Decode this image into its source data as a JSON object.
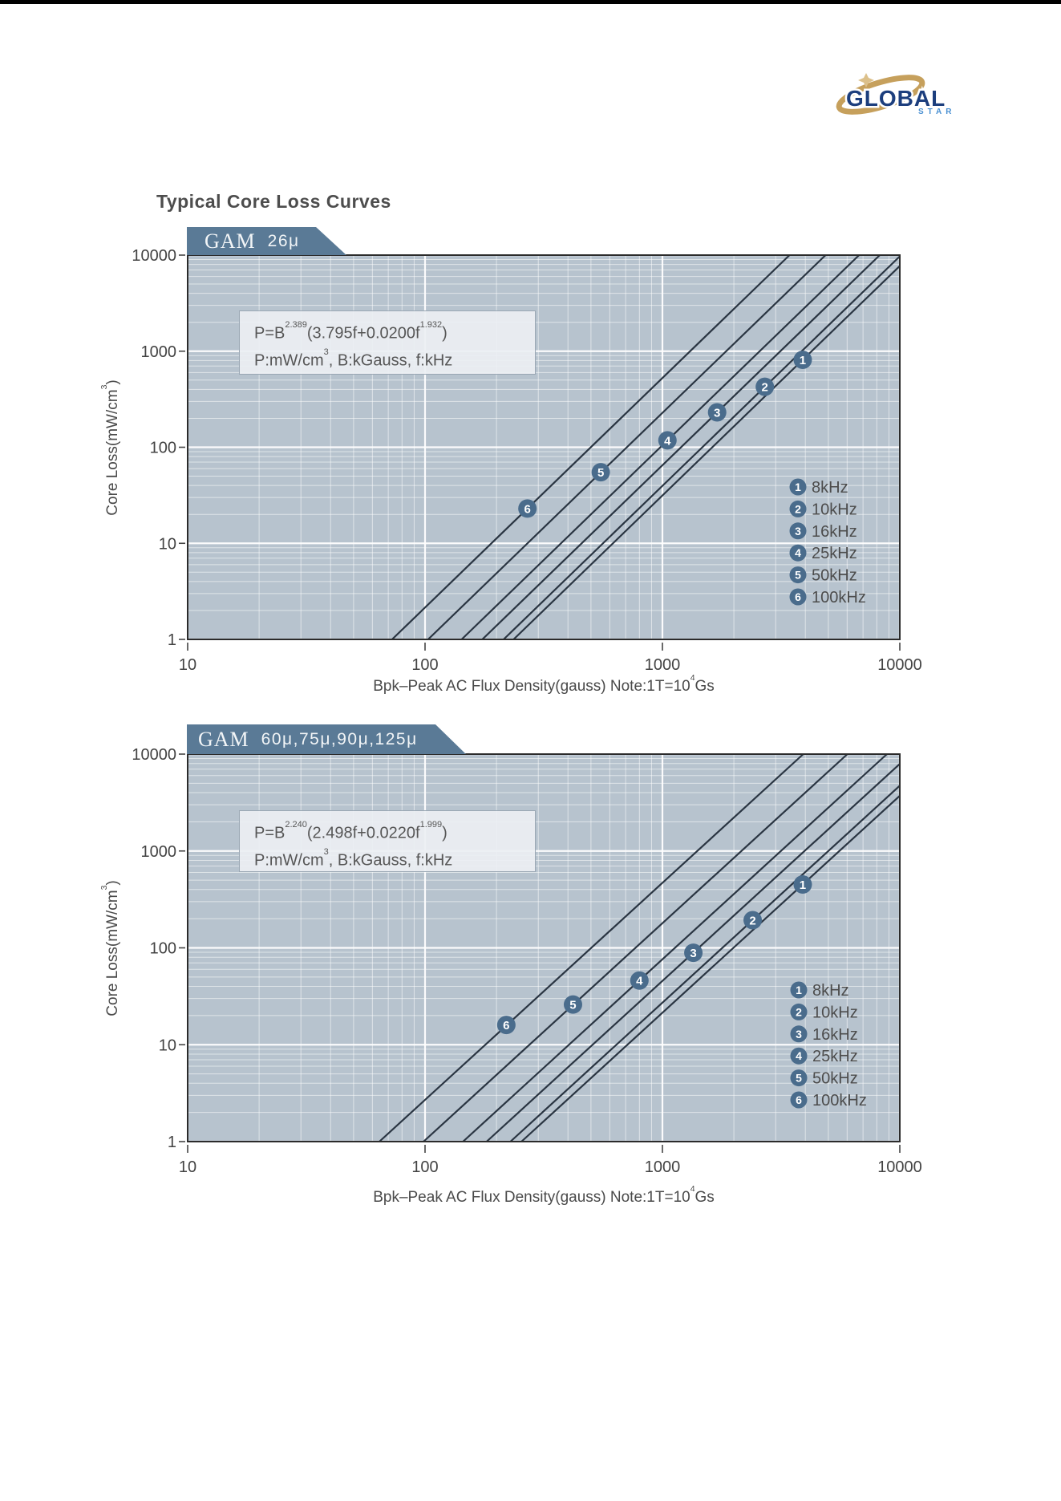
{
  "page_title": "Typical Core Loss Curves",
  "logo": {
    "word": "GLOBAL",
    "sub": "STAR"
  },
  "colors": {
    "plot_background": "#b7c3ce",
    "grid_line": "#ffffff",
    "curve": "#2a3542",
    "marker_fill": "#4a6c8c",
    "marker_number": "#ffffff",
    "banner_background": "#5a7a96",
    "axis_text": "#434343",
    "border": "#2b2b2b",
    "logo_word_color": "#1c3e7d",
    "logo_sub_color": "#4a90d2",
    "logo_swoosh_color": "#c6a05c"
  },
  "axis": {
    "x_title": {
      "p1": "Bpk–Peak AC Flux Density(gauss) Note:1T=10",
      "s1": "4",
      "p2": "Gs"
    },
    "y_title": {
      "p1": "Core Loss(mW/cm",
      "s1": "3",
      "p2": ")"
    },
    "x_ticks": [
      "10",
      "100",
      "1000",
      "10000"
    ],
    "y_ticks": [
      "10000",
      "1000",
      "100",
      "10",
      "1"
    ]
  },
  "charts": [
    {
      "banner": {
        "brand": "GAM",
        "spec": "26μ"
      },
      "formula": {
        "p1": "P=B",
        "s1": "2.389",
        "p2": "(3.795f+0.0200f",
        "s2": "1.932",
        "p3": ")"
      },
      "units": {
        "p1": "P:mW/cm",
        "s1": "3",
        "p2": ",  B:kGauss,  f:kHz"
      }
    },
    {
      "banner": {
        "brand": "GAM",
        "spec": "60μ,75μ,90μ,125μ"
      },
      "formula": {
        "p1": "P=B",
        "s1": "2.240",
        "p2": "(2.498f+0.0220f",
        "s2": "1.999",
        "p3": ")"
      },
      "units": {
        "p1": "P:mW/cm",
        "s1": "3",
        "p2": ",  B:kGauss,  f:kHz"
      }
    }
  ],
  "chart_data": [
    {
      "type": "line",
      "title": "GAM 26μ Typical Core Loss",
      "x_scale": "log",
      "y_scale": "log",
      "xlim": [
        10,
        10000
      ],
      "ylim": [
        1,
        10000
      ],
      "xlabel": "Bpk–Peak AC Flux Density(gauss) Note:1T=10⁴Gs",
      "ylabel": "Core Loss(mW/cm³)",
      "grid": true,
      "legend_position": "lower right",
      "formula": "P=B^2.389(3.795f+0.0200f^1.932)  P:mW/cm³, B:kGauss, f:kHz",
      "coeff": {
        "B_exponent": 2.389,
        "f_linear": 3.795,
        "f_coef": 0.02,
        "f_exponent": 1.932
      },
      "x_sample_gauss": [
        100,
        300,
        1000,
        3000,
        10000
      ],
      "series": [
        {
          "marker": "1",
          "name": "8kHz",
          "f_kHz": 8,
          "P_mW_cm3": [
            0.13,
            1.77,
            31.5,
            434,
            7710
          ],
          "marker_at": {
            "B_gauss": 3900,
            "P": 813
          }
        },
        {
          "marker": "2",
          "name": "10kHz",
          "f_kHz": 10,
          "P_mW_cm3": [
            0.16,
            2.23,
            39.7,
            547,
            9716
          ],
          "marker_at": {
            "B_gauss": 2700,
            "P": 426
          }
        },
        {
          "marker": "3",
          "name": "16kHz",
          "f_kHz": 16,
          "P_mW_cm3": [
            0.27,
            3.66,
            64.9,
            896,
            15908
          ],
          "marker_at": {
            "B_gauss": 1700,
            "P": 231
          }
        },
        {
          "marker": "4",
          "name": "25kHz",
          "f_kHz": 25,
          "P_mW_cm3": [
            0.43,
            5.91,
            105,
            1448,
            25704
          ],
          "marker_at": {
            "B_gauss": 1050,
            "P": 118
          }
        },
        {
          "marker": "5",
          "name": "50kHz",
          "f_kHz": 50,
          "P_mW_cm3": [
            0.93,
            12.9,
            228,
            3148,
            55877
          ],
          "marker_at": {
            "B_gauss": 550,
            "P": 55
          }
        },
        {
          "marker": "6",
          "name": "100kHz",
          "f_kHz": 100,
          "P_mW_cm3": [
            2.14,
            29.5,
            524,
            7237,
            128463
          ],
          "marker_at": {
            "B_gauss": 270,
            "P": 23
          }
        }
      ]
    },
    {
      "type": "line",
      "title": "GAM 60μ,75μ,90μ,125μ Typical Core Loss",
      "x_scale": "log",
      "y_scale": "log",
      "xlim": [
        10,
        10000
      ],
      "ylim": [
        1,
        10000
      ],
      "xlabel": "Bpk–Peak AC Flux Density(gauss) Note:1T=10⁴Gs",
      "ylabel": "Core Loss(mW/cm³)",
      "grid": true,
      "legend_position": "lower right",
      "formula": "P=B^2.240(2.498f+0.0220f^1.999)  P:mW/cm³, B:kGauss, f:kHz",
      "coeff": {
        "B_exponent": 2.24,
        "f_linear": 2.498,
        "f_coef": 0.022,
        "f_exponent": 1.999
      },
      "x_sample_gauss": [
        100,
        300,
        1000,
        3000,
        10000
      ],
      "series": [
        {
          "marker": "1",
          "name": "8kHz",
          "f_kHz": 8,
          "P_mW_cm3": [
            0.12,
            1.44,
            21.4,
            251,
            3717
          ],
          "marker_at": {
            "B_gauss": 3900,
            "P": 451
          }
        },
        {
          "marker": "2",
          "name": "10kHz",
          "f_kHz": 10,
          "P_mW_cm3": [
            0.16,
            1.83,
            27.2,
            318,
            4723
          ],
          "marker_at": {
            "B_gauss": 2400,
            "P": 193
          }
        },
        {
          "marker": "3",
          "name": "16kHz",
          "f_kHz": 16,
          "P_mW_cm3": [
            0.26,
            3.07,
            45.6,
            534,
            7921
          ],
          "marker_at": {
            "B_gauss": 1350,
            "P": 89
          }
        },
        {
          "marker": "4",
          "name": "25kHz",
          "f_kHz": 25,
          "P_mW_cm3": [
            0.44,
            5.14,
            76.2,
            892,
            13238
          ],
          "marker_at": {
            "B_gauss": 800,
            "P": 46
          }
        },
        {
          "marker": "5",
          "name": "50kHz",
          "f_kHz": 50,
          "P_mW_cm3": [
            1.03,
            12.1,
            180,
            2105,
            31232
          ],
          "marker_at": {
            "B_gauss": 420,
            "P": 26
          }
        },
        {
          "marker": "6",
          "name": "100kHz",
          "f_kHz": 100,
          "P_mW_cm3": [
            2.7,
            31.6,
            469,
            5492,
            81478
          ],
          "marker_at": {
            "B_gauss": 220,
            "P": 16
          }
        }
      ]
    }
  ]
}
